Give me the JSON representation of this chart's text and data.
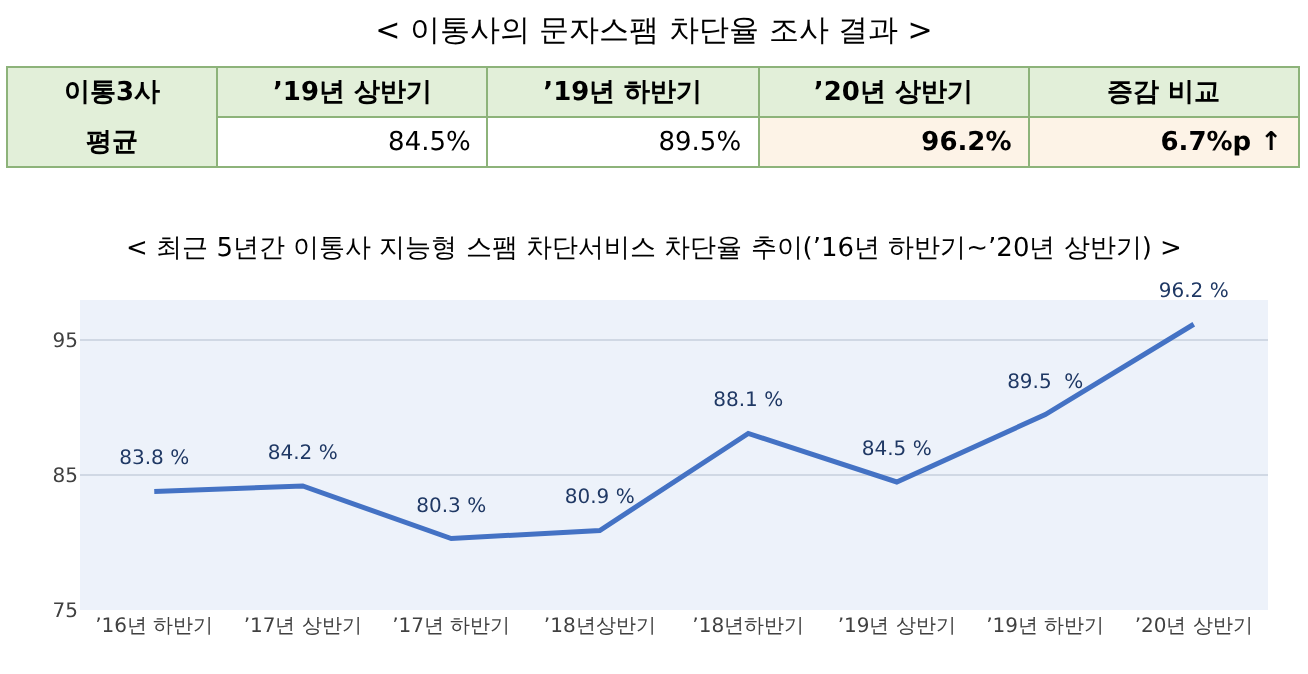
{
  "chart_data": [
    {
      "type": "other",
      "title": "< 이통사의 문자스팸 차단율 조사 결과 >",
      "annotations": [
        "이통3사",
        "’19년 상반기",
        "’19년 하반기",
        "’20년 상반기",
        "증감 비교",
        "평균",
        "84.5%",
        "89.5%",
        "96.2%",
        "6.7%p ↑"
      ]
    },
    {
      "type": "line",
      "title": "< 최근 5년간 이통사 지능형 스팸 차단서비스 차단율 추이(’16년 하반기~’20년 상반기) >",
      "categories": [
        "’16년 하반기",
        "’17년 상반기",
        "’17년 하반기",
        "’18년상반기",
        "’18년하반기",
        "’19년 상반기",
        "’19년 하반기",
        "’20년 상반기"
      ],
      "values": [
        83.8,
        84.2,
        80.3,
        80.9,
        88.1,
        84.5,
        89.5,
        96.2
      ],
      "value_labels": [
        "83.8 %",
        "84.2 %",
        "80.3 %",
        "80.9 %",
        "88.1 %",
        "84.5 %",
        "89.5  %",
        "96.2 %"
      ],
      "color": "#4472c4",
      "ylim": [
        75,
        98
      ],
      "yticks": [
        75,
        85,
        95
      ],
      "grid": "y"
    }
  ]
}
